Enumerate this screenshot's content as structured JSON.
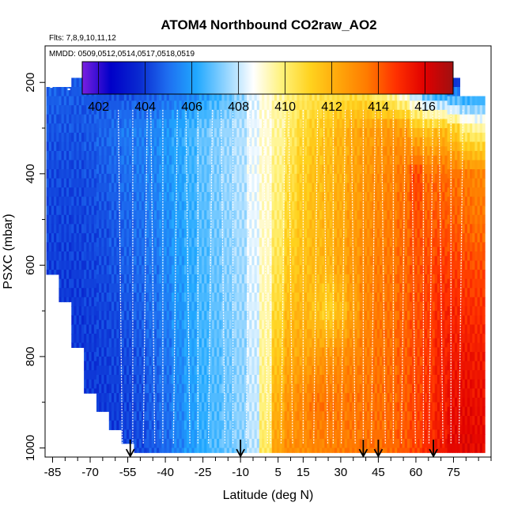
{
  "chart_data": {
    "type": "heatmap",
    "title": "ATOM4 Northbound CO2raw_AO2",
    "flights_note": "Flts: 7,8,9,10,11,12",
    "dates_note": "MMDD: 0509,0512,0514,0517,0518,0519",
    "xlabel": "Latitude (deg N)",
    "ylabel": "PSXC (mbar)",
    "xlim": [
      -88,
      90
    ],
    "ylim": [
      1020,
      120
    ],
    "x_ticks": [
      -85,
      -70,
      -55,
      -40,
      -25,
      -10,
      5,
      15,
      30,
      45,
      60,
      75
    ],
    "x_tick_labels": [
      "-85",
      "-70",
      "-55",
      "-40",
      "-25",
      "-10",
      "5",
      "15",
      "30",
      "45",
      "60",
      "75"
    ],
    "y_ticks": [
      200,
      400,
      600,
      800,
      1000
    ],
    "y_tick_labels": [
      "200",
      "400",
      "600",
      "800",
      "1000"
    ],
    "colorbar": {
      "range": [
        401.3,
        417.2
      ],
      "ticks": [
        402,
        404,
        406,
        408,
        410,
        412,
        414,
        416
      ],
      "tick_labels": [
        "402",
        "404",
        "406",
        "408",
        "410",
        "412",
        "414",
        "416"
      ],
      "colors": [
        "#7a1fe0",
        "#0000c8",
        "#0a2ad0",
        "#1e6ef0",
        "#20a8ff",
        "#8fd3ff",
        "#ffffff",
        "#fff27a",
        "#ffd21e",
        "#ffa60a",
        "#ff7a00",
        "#ff3000",
        "#e00000",
        "#a01010"
      ]
    },
    "latitude_bins": [
      -85,
      -80,
      -75,
      -70,
      -65,
      -60,
      -55,
      -50,
      -45,
      -40,
      -35,
      -30,
      -25,
      -20,
      -15,
      -10,
      -5,
      0,
      5,
      10,
      15,
      20,
      25,
      30,
      35,
      40,
      45,
      50,
      55,
      60,
      65,
      70,
      75,
      80,
      85
    ],
    "surface_pressure_mbar": [
      620,
      680,
      780,
      880,
      920,
      960,
      990,
      1010,
      1010,
      1010,
      1010,
      1010,
      1010,
      1010,
      1010,
      1010,
      1010,
      1010,
      1010,
      1010,
      1010,
      1010,
      1010,
      1010,
      1010,
      1010,
      1010,
      1010,
      1010,
      1010,
      1010,
      1010,
      1010,
      1010,
      1010
    ],
    "ceiling_pressure_mbar": [
      210,
      210,
      190,
      190,
      160,
      160,
      160,
      160,
      160,
      160,
      160,
      160,
      160,
      160,
      160,
      160,
      160,
      160,
      160,
      160,
      160,
      160,
      160,
      160,
      160,
      160,
      160,
      160,
      160,
      160,
      160,
      160,
      190,
      230,
      230
    ],
    "co2_profiles": {
      "pressure_levels_mbar": [
        200,
        300,
        400,
        500,
        600,
        700,
        800,
        900,
        1000
      ],
      "values_ppm": [
        [
          404.8,
          404.5,
          404.3,
          404.2,
          404.1,
          404.0,
          404.0,
          404.0,
          404.0
        ],
        [
          404.7,
          404.5,
          404.3,
          404.2,
          404.1,
          404.0,
          404.0,
          404.0,
          404.0
        ],
        [
          404.6,
          404.5,
          404.3,
          404.2,
          404.1,
          404.0,
          404.0,
          404.0,
          404.0
        ],
        [
          404.5,
          404.6,
          404.4,
          404.3,
          404.2,
          404.1,
          404.0,
          404.0,
          404.0
        ],
        [
          404.3,
          404.8,
          404.6,
          404.4,
          404.3,
          404.2,
          404.1,
          404.0,
          404.0
        ],
        [
          404.2,
          405.0,
          404.8,
          404.6,
          404.5,
          404.3,
          404.2,
          404.1,
          404.0
        ],
        [
          404.2,
          405.2,
          405.0,
          404.8,
          404.7,
          404.5,
          404.3,
          404.2,
          404.2
        ],
        [
          404.3,
          405.3,
          405.2,
          405.0,
          404.9,
          404.7,
          404.5,
          404.4,
          404.3
        ],
        [
          404.4,
          405.5,
          405.4,
          405.3,
          405.1,
          405.0,
          404.8,
          404.7,
          404.6
        ],
        [
          404.6,
          405.8,
          405.8,
          405.6,
          405.5,
          405.3,
          405.1,
          405.0,
          404.9
        ],
        [
          404.8,
          406.2,
          406.1,
          406.0,
          405.9,
          405.8,
          405.6,
          405.5,
          405.4
        ],
        [
          405.0,
          406.6,
          406.5,
          406.4,
          406.3,
          406.2,
          406.1,
          406.0,
          405.9
        ],
        [
          405.5,
          407.0,
          406.9,
          406.8,
          406.7,
          406.6,
          406.5,
          406.4,
          406.3
        ],
        [
          406.0,
          407.3,
          407.2,
          407.1,
          407.0,
          406.9,
          406.8,
          406.7,
          406.7
        ],
        [
          406.6,
          407.5,
          407.5,
          407.4,
          407.3,
          407.2,
          407.1,
          407.0,
          407.0
        ],
        [
          407.2,
          407.8,
          407.8,
          407.7,
          407.6,
          407.5,
          407.4,
          407.4,
          407.3
        ],
        [
          408.2,
          408.4,
          408.5,
          408.4,
          408.3,
          408.2,
          408.1,
          408.0,
          407.9
        ],
        [
          409.0,
          409.0,
          409.1,
          409.1,
          409.2,
          409.4,
          409.6,
          409.8,
          410.2
        ],
        [
          409.5,
          409.5,
          409.8,
          410.0,
          410.4,
          410.8,
          411.4,
          412.0,
          412.4
        ],
        [
          409.8,
          410.2,
          410.6,
          410.9,
          411.3,
          411.7,
          412.2,
          412.8,
          413.0
        ],
        [
          410.0,
          410.8,
          411.2,
          411.4,
          411.6,
          411.9,
          412.3,
          413.2,
          413.0
        ],
        [
          410.1,
          411.2,
          411.6,
          411.7,
          411.8,
          411.5,
          412.6,
          413.6,
          413.2
        ],
        [
          410.0,
          411.5,
          411.8,
          411.9,
          411.9,
          411.0,
          412.8,
          413.6,
          413.3
        ],
        [
          410.0,
          411.9,
          412.0,
          412.2,
          412.3,
          411.6,
          413.0,
          413.5,
          413.4
        ],
        [
          410.1,
          412.2,
          412.4,
          412.6,
          412.7,
          412.4,
          413.2,
          413.6,
          413.5
        ],
        [
          409.9,
          412.4,
          412.7,
          412.9,
          413.1,
          413.2,
          413.4,
          413.6,
          413.6
        ],
        [
          408.9,
          412.6,
          413.0,
          413.2,
          413.4,
          413.5,
          413.6,
          413.7,
          413.7
        ],
        [
          408.5,
          412.7,
          413.2,
          413.4,
          413.5,
          413.6,
          413.7,
          413.8,
          413.8
        ],
        [
          407.5,
          412.6,
          413.5,
          413.7,
          413.8,
          413.9,
          414.0,
          414.0,
          414.1
        ],
        [
          406.5,
          411.6,
          414.4,
          414.2,
          414.1,
          414.2,
          414.3,
          414.4,
          414.4
        ],
        [
          405.0,
          411.4,
          413.7,
          414.0,
          414.3,
          414.5,
          414.6,
          414.8,
          414.9
        ],
        [
          404.2,
          411.6,
          413.8,
          414.1,
          414.6,
          414.9,
          415.1,
          415.2,
          415.3
        ],
        [
          404.0,
          411.0,
          413.6,
          414.0,
          414.5,
          415.0,
          415.3,
          415.6,
          415.8
        ],
        [
          404.2,
          409.8,
          413.4,
          413.8,
          414.4,
          414.9,
          415.4,
          415.7,
          415.9
        ],
        [
          404.5,
          409.5,
          413.2,
          413.6,
          414.3,
          414.8,
          415.3,
          415.6,
          415.8
        ]
      ]
    },
    "profile_latitudes_deg": [
      -58,
      -53,
      -48,
      -45,
      -41,
      -36,
      -31,
      -27,
      -22,
      -17,
      -13,
      -7,
      0,
      2,
      7,
      10,
      15,
      20,
      24,
      27,
      31,
      35,
      39,
      43,
      47,
      51,
      55,
      59,
      63,
      66,
      70,
      74,
      78
    ],
    "flight_track_segments_lat": [
      [
        -86,
        -85
      ],
      [
        -79,
        -78
      ],
      [
        -64,
        -62
      ],
      [
        -10,
        0
      ],
      [
        42,
        47
      ],
      [
        56,
        58
      ],
      [
        64,
        66
      ]
    ],
    "flight_track_segments_psxc": [
      [
        210,
        210
      ],
      [
        215,
        215
      ],
      [
        200,
        200
      ],
      [
        210,
        210
      ],
      [
        200,
        200
      ],
      [
        220,
        220
      ],
      [
        210,
        210
      ]
    ],
    "airport_markers_lat": [
      -54,
      -10,
      39,
      45,
      67
    ]
  }
}
